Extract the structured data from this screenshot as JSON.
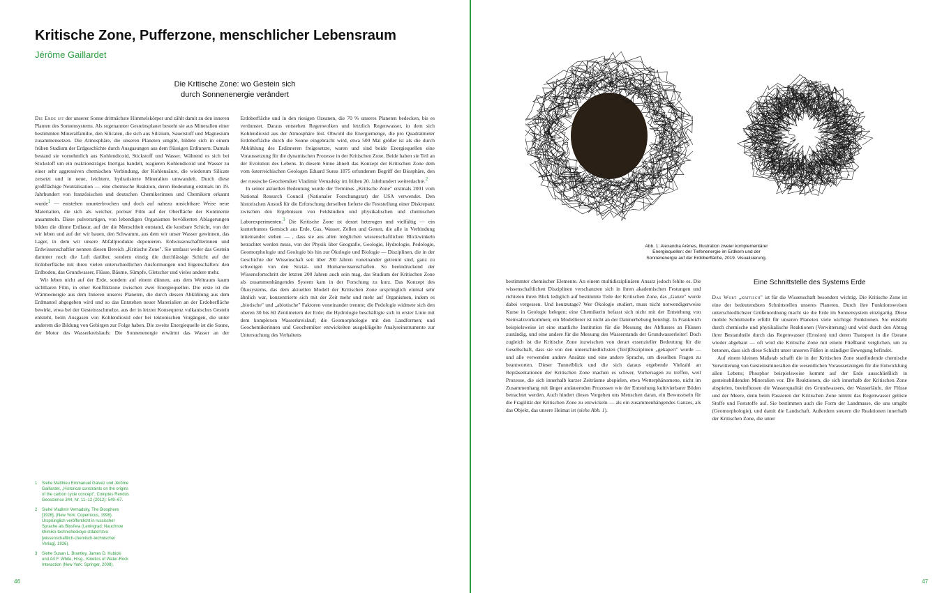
{
  "colors": {
    "accent": "#2a9d3f",
    "text": "#222222",
    "background": "#ffffff"
  },
  "left": {
    "title": "Kritische Zone, Pufferzone, menschlicher Lebensraum",
    "author": "Jérôme Gaillardet",
    "subtitle_l1": "Die Kritische Zone: wo Gestein sich",
    "subtitle_l2": "durch Sonnenenergie verändert",
    "page_number": "46",
    "footnotes": [
      {
        "num": "1",
        "text": "Siehe Matthieu Emmanuel Galvez und Jérôme Gaillardet, „Historical constraints on the origins of the carbon cycle concept\", Comptes Rendus Geoscience 344, Nr. 11–12 (2012): 549–67."
      },
      {
        "num": "2",
        "text": "Siehe Vladimir Vernadsky, The Biosphere [1926], (New York: Copernicus, 1998). Ursprünglich veröffentlicht in russischer Sprache als Biosfera (Leningrad: Nauchnoe khimiko-technicheskoye izdatel'stvo [wissenschaftlich-chemisch-technischer Verlag], 1926)."
      },
      {
        "num": "3",
        "text": "Siehe Susan L. Brantley, James D. Kubicki und Art F. White, Hrsg., Kinetics of Water-Rock Interaction (New York: Springer, 2008)."
      }
    ],
    "p1": "Die Erde ist der unserer Sonne drittnächste Himmelskörper und zählt damit zu den inneren Planten des Sonnensystems. Als sogenannter Gesteinsplanet besteht sie aus Mineralien einer bestimmten Mineralfamilie, den Silicaten, die sich aus Silizium, Sauerstoff und Magnesium zusammensetzen. Die Atmosphäre, die unseren Planeten umgibt, bildete sich in einem frühen Stadium der Erdgeschichte durch Ausgasungen aus dem flüssigen Erdinnern. Damals bestand sie vornehmlich aus Kohlendioxid, Stickstoff und Wasser. Während es sich bei Stickstoff um ein reaktionsträges Inertgas handelt, reagieren Kohlendioxid und Wasser zu einer sehr aggressiven chemischen Verbindung, der Kohlensäure, die wiederum Silicate zersetzt und in neue, leichtere, hydratisierte Mineralien umwandelt. Durch diese großflächige Neutralisation — eine chemische Reaktion, deren Bedeutung erstmals im 19. Jahrhundert von französischen und deutschen Chemikerinnen und Chemikern erkannt wurde¹ — entstehen ununterbrochen und doch auf nahezu unsichtbare Weise neue Materialien, die sich als weicher, poröser Film auf der Oberfläche der Kontinente ansammeln. Diese pulverartigen, von lebendigen Organismen bevölkerten Ablagerungen bilden die dünne Erdlasur, auf der die Menschheit entstand, die kostbare Schicht, von der wir leben und auf der wir bauen, den Schwamm, aus dem wir unser Wasser gewinnen, das Lager, in dem wir unsere Abfallprodukte deponieren. Erdwissenschaftlerinnen und Erdwissenschaftler nennen diesen Bereich „Kritische Zone\". Sie umfasst weder das Gestein darunter noch die Luft darüber, sondern einzig die durchlässige Schicht auf der Erdoberfläche mit ihren vielen unterschiedlichen Ausformungen und Eigenschaften: den Erdboden, das Grundwasser, Flüsse, Bäume, Sümpfe, Gletscher und vieles andere mehr.",
    "p2": "Wir leben nicht auf der Erde, sondern auf einem dünnen, aus dem Weltraum kaum sichtbaren Film, in einer Konfliktzone zwischen zwei Energiequellen. Die erste ist die Wärmeenergie aus dem Inneren unseres Planeten, die durch dessen Abkühlung aus dem Erdmantel abgegeben wird und so das Entstehen neuer Materialien an der Erdoberfläche bewirkt, etwa bei der Gesteinsschmelze, aus der in letzter Konsequenz vulkanisches Gestein entsteht, beim Ausgasen von Kohlendioxid oder bei tektonischen Vorgängen, die unter anderem die Bildung von Gebirgen zur Folge haben. Die zweite Energiequelle ist die Sonne, der Motor des Wasserkreislaufs: Die Sonnenenergie erwärmt das Wasser an der Erdoberfläche und in den riesigen Ozeanen, die 70 % unseres Planeten bedecken, bis es verdunstet. Daraus entstehen Regenwolken und letztlich Regenwasser, in dem sich Kohlendioxid aus der Atmosphäre löst. Obwohl die Energiemenge, die pro Quadratmeter Erdoberfläche durch die Sonne eingebracht wird, etwa 500 Mal größer ist als die durch Abkühlung des Erdinneren freigesetzte, waren und sind beide Energiequellen eine Voraussetzung für die dynamischen Prozesse in der Kritischen Zone. Beide haben sie Teil an der Evolution des Lebens. In diesem Sinne ähnelt das Konzept der Kritischen Zone dem vom österreichischen Geologen Eduard Suess 1875 erfundenen Begriff der Biosphäre, den der russische Geochemiker Vladimir Vernadsky im frühen 20. Jahrhundert weiterdachte.²",
    "p3": "In seiner aktuellen Bedeutung wurde der Terminus „Kritische Zone\" erstmals 2001 vom National Research Council (Nationaler Forschungsrat) der USA verwendet. Den historischen Anstoß für die Erforschung derselben lieferte die Feststellung einer Diskrepanz zwischen den Ergebnissen von Feldstudien und physikalischen und chemischen Laborexperimenten.³ Die Kritische Zone ist derart heterogen und vielfältig — ein kunterbuntes Gemisch aus Erde, Gas, Wasser, Zellen und Genen, die alle in Verbindung miteinander stehen — , dass sie aus allen möglichen wissenschaftlichen Blickwinkeln betrachtet werden muss, von der Physik über Geografie, Geologie, Hydrologie, Pedologie, Geomorphologie und Geologie bis hin zur Ökologie und Biologie — Disziplinen, die in der Geschichte der Wissenschaft seit über 200 Jahren voneinander getrennt sind, ganz zu schweigen von den Sozial- und Humanwissenschaften. So beeindruckend der Wissensfortschritt der letzten 200 Jahren auch sein mag, das Studium der Kritischen Zone als zusammenhängendes System kam in der Forschung zu kurz. Das Konzept des Ökosystems, das dem aktuellen Modell der Kritischen Zone ursprünglich einmal sehr ähnlich war, konzentrierte sich mit der Zeit mehr und mehr auf Organismen, indem es „biotische\" und „abiotische\" Faktoren voneinander trennte; die Pedologie widmete sich den oberen 30 bis 60 Zentimetern der Erde; die Hydrologie beschäftigte sich in erster Linie mit dem komplexen Wasserkreislauf; die Geomorphologie mit den Landformen; und Geochemikerinnen und Geochemiker entwickelten ausgeklügelte Analyseinstrumente zur Untersuchung des Verhaltens"
  },
  "right": {
    "caption_l1": "Abb. 1: Alexandra Arènes, Illustration zweier komplementärer",
    "caption_l2": "Energiequellen: der Tiefenenergie im Erdkern und der",
    "caption_l3": "Sonnenenergie auf der Erdoberfläche, 2019. Visualisierung.",
    "page_number": "47",
    "section_title": "Eine Schnittstelle des Systems Erde",
    "p1": "bestimmter chemischer Elemente. An einem multidisziplinären Ansatz jedoch fehlte es. Die wissenschaftlichen Disziplinen verschanzten sich in ihren akademischen Festungen und richteten ihren Blick lediglich auf bestimmte Teile der Kritischen Zone, das „Ganze\" wurde dabei vergessen. Und heutzutage? Wer Ökologie studiert, muss nicht notwendigerweise Kurse in Geologie belegen; eine Chemikerin befasst sich nicht mit der Entstehung von Steinsalzvorkommen; ein Modellierer ist nicht an der Datenerhebung beteiligt. In Frankreich beispielsweise ist eine staatliche Institution für die Messung des Abflusses an Flüssen zuständig, und eine andere für die Messung des Wasserstands der Grundwasserleiter! Doch zugleich ist die Kritische Zone inzwischen von derart essenzieller Bedeutung für die Gesellschaft, dass sie von den unterschiedlichsten (Teil)Disziplinen „gekapert\" wurde — und alle verwenden andere Ansätze und eine andere Sprache, um dieselben Fragen zu beantworten. Dieser Tunnelblick und die sich daraus ergebende Vielzahl an Repräsentationen der Kritischen Zone machen es schwer, Vorhersagen zu treffen, weil Prozesse, die sich innerhalb kurzer Zeiträume abspielen, etwa Wetterphänomene, nicht im Zusammenhang mit länger andauernden Prozessen wie der Entstehung kultivierbarer Böden betrachtet werden. Auch hindert dieses Vorgehen uns Menschen daran, ein Bewusstsein für die Fragilität der Kritischen Zone zu entwickeln — als ein zusammenhängendes Ganzes, als das Objekt, das unsere Heimat ist (siehe Abb. 1).",
    "p2": "Das Wort „kritisch\" ist für die Wissenschaft besonders wichtig. Die Kritische Zone ist eine der bedeutendsten Schnittstellen unseres Planeten. Durch ihre Funktionsweisen unterschiedlichster Größenordnung macht sie die Erde im Sonnensystem einzigartig. Diese mobile Schnittstelle erfüllt für unseren Planeten viele wichtige Funktionen. Sie entsteht durch chemische und physikalische Reaktionen (Verwitterung) und wird durch den Abtrag ihrer Bestandteile durch das Regenwasser (Erosion) und deren Transport in die Ozeane wieder abgebaut — oft wird die Kritische Zone mit einem Fließband verglichen, um zu betonen, dass sich diese Schicht unter unseren Füßen in ständiger Bewegung befindet.",
    "p3": "Auf einem kleinen Maßstab schafft die in der Kritischen Zone stattfindende chemische Verwitterung von Gesteinsmineralien die wesentlichen Voraussetzungen für die Entwicklung allen Lebens; Phosphor beispielsweise kommt auf der Erde ausschließlich in gesteinsbildenden Mineralien vor. Die Reaktionen, die sich innerhalb der Kritischen Zone abspielen, beeinflussen die Wasserqualität des Grundwassers, der Wasserläufe, der Flüsse und der Meere, denn beim Passieren der Kritischen Zone nimmt das Regenwasser gelöste Stoffe und Feststoffe auf. Sie bestimmen auch die Form der Landmasse, die uns umgibt (Geomorphologie), und damit die Landschaft. Außerdem steuern die Reaktionen innerhalb der Kritischen Zone, die unter"
  }
}
